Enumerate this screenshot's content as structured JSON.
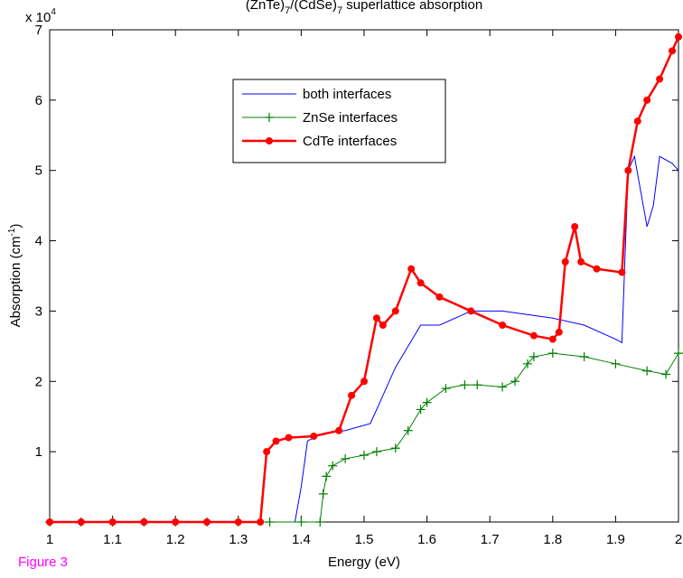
{
  "chart_data": {
    "type": "line",
    "title": {
      "parts": [
        "(ZnTe)",
        "7",
        "/(CdSe)",
        "7",
        " superlattice absorption"
      ]
    },
    "x_label": "Energy (eV)",
    "y_label": {
      "parts": [
        "Absorption (cm",
        "-1",
        ")"
      ]
    },
    "y_multiplier": {
      "parts": [
        "x 10",
        "4"
      ]
    },
    "annotation": "Figure 3",
    "xlim": [
      1,
      2
    ],
    "ylim": [
      0,
      7
    ],
    "xticks": [
      1,
      1.1,
      1.2,
      1.3,
      1.4,
      1.5,
      1.6,
      1.7,
      1.8,
      1.9,
      2
    ],
    "yticks": [
      1,
      2,
      3,
      4,
      5,
      6,
      7
    ],
    "grid": false,
    "legend": "top-center",
    "series": [
      {
        "name": "both interfaces",
        "color": "#0000ff",
        "marker": "none",
        "x": [
          1,
          1.1,
          1.2,
          1.3,
          1.39,
          1.4,
          1.41,
          1.43,
          1.47,
          1.51,
          1.55,
          1.59,
          1.62,
          1.67,
          1.72,
          1.8,
          1.85,
          1.9,
          1.91,
          1.92,
          1.93,
          1.94,
          1.95,
          1.96,
          1.97,
          1.99,
          2
        ],
        "values": [
          0,
          0,
          0,
          0,
          0,
          0.5,
          1.15,
          1.25,
          1.3,
          1.4,
          2.2,
          2.8,
          2.8,
          3.0,
          3.0,
          2.9,
          2.8,
          2.6,
          2.55,
          5.0,
          5.2,
          4.7,
          4.2,
          4.5,
          5.2,
          5.1,
          5.0
        ]
      },
      {
        "name": "ZnSe interfaces",
        "color": "#008000",
        "marker": "plus",
        "x": [
          1,
          1.05,
          1.1,
          1.15,
          1.2,
          1.25,
          1.3,
          1.35,
          1.4,
          1.43,
          1.435,
          1.44,
          1.45,
          1.47,
          1.5,
          1.52,
          1.55,
          1.57,
          1.59,
          1.6,
          1.63,
          1.66,
          1.68,
          1.72,
          1.74,
          1.76,
          1.77,
          1.8,
          1.85,
          1.9,
          1.95,
          1.98,
          2
        ],
        "values": [
          0,
          0,
          0,
          0,
          0,
          0,
          0,
          0,
          0,
          0,
          0.4,
          0.65,
          0.8,
          0.9,
          0.95,
          1.0,
          1.05,
          1.3,
          1.6,
          1.7,
          1.9,
          1.95,
          1.95,
          1.92,
          2.0,
          2.25,
          2.35,
          2.4,
          2.35,
          2.25,
          2.15,
          2.1,
          2.4
        ]
      },
      {
        "name": "CdTe interfaces",
        "color": "#ff0000",
        "marker": "dot",
        "x": [
          1,
          1.05,
          1.1,
          1.15,
          1.2,
          1.25,
          1.3,
          1.335,
          1.345,
          1.36,
          1.38,
          1.42,
          1.46,
          1.48,
          1.5,
          1.52,
          1.53,
          1.55,
          1.575,
          1.59,
          1.62,
          1.67,
          1.72,
          1.77,
          1.8,
          1.81,
          1.82,
          1.835,
          1.845,
          1.87,
          1.91,
          1.92,
          1.935,
          1.95,
          1.97,
          1.99,
          2
        ],
        "values": [
          0,
          0,
          0,
          0,
          0,
          0,
          0,
          0,
          1.0,
          1.15,
          1.2,
          1.22,
          1.3,
          1.8,
          2.0,
          2.9,
          2.8,
          3.0,
          3.6,
          3.4,
          3.2,
          3.0,
          2.8,
          2.65,
          2.6,
          2.7,
          3.7,
          4.2,
          3.7,
          3.6,
          3.55,
          5.0,
          5.7,
          6.0,
          6.3,
          6.7,
          6.9
        ]
      }
    ]
  }
}
